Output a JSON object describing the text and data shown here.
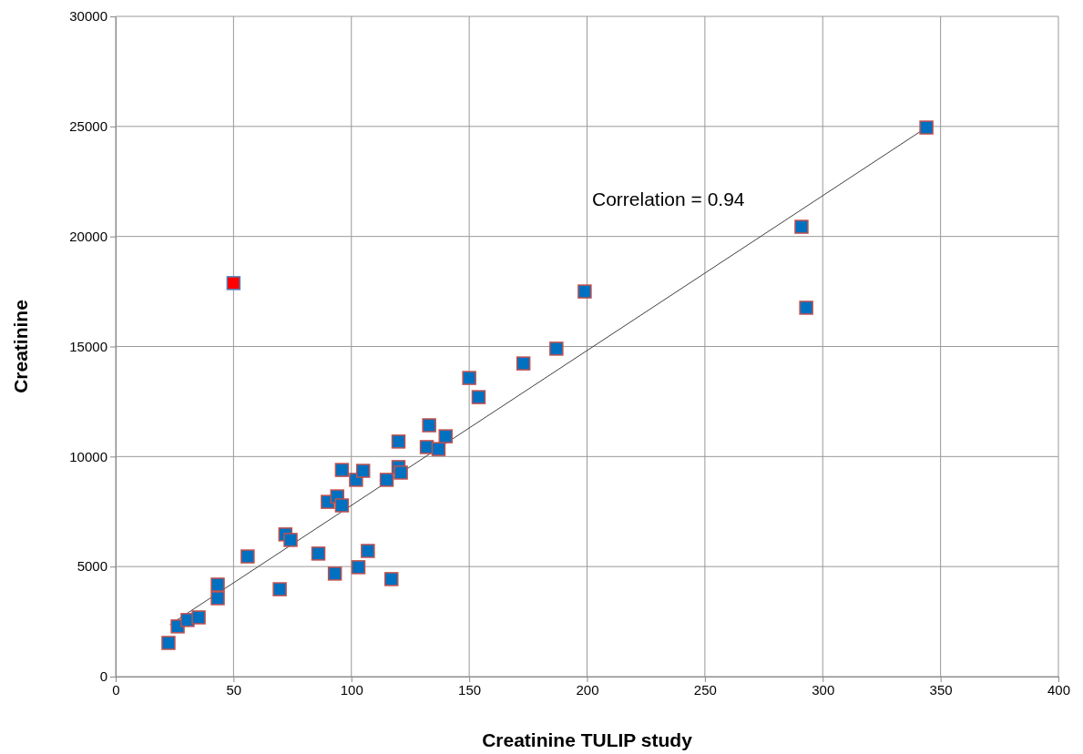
{
  "chart_data": {
    "type": "scatter",
    "xlabel": "Creatinine TULIP study",
    "ylabel": "Creatinine",
    "xlim": [
      0,
      400
    ],
    "ylim": [
      0,
      30000
    ],
    "xticks": [
      0,
      50,
      100,
      150,
      200,
      250,
      300,
      350,
      400
    ],
    "yticks": [
      0,
      5000,
      10000,
      15000,
      20000,
      25000,
      30000
    ],
    "grid": true,
    "marker": "square",
    "annotations": [
      "Correlation = 0.94"
    ],
    "series": [
      {
        "type": "line",
        "color": "#404040",
        "marker": "none",
        "x": [
          23,
          344
        ],
        "values": [
          2360,
          24950
        ]
      },
      {
        "color": "#0070c0",
        "x": [
          22.4,
          26.3,
          30.5,
          35.2,
          43.3,
          43.3,
          56,
          69.6,
          72,
          74.2,
          86,
          93,
          90,
          94,
          96,
          96,
          102,
          105,
          103,
          107,
          117,
          115,
          120,
          121,
          120,
          132,
          133,
          137,
          140,
          150,
          154,
          173,
          187,
          199,
          291,
          293,
          344
        ],
        "values": [
          1530,
          2280,
          2570,
          2690,
          3560,
          4180,
          5460,
          3970,
          6460,
          6210,
          5590,
          4680,
          7940,
          8190,
          7780,
          9390,
          8940,
          9350,
          4970,
          5710,
          4430,
          8940,
          9520,
          9270,
          10680,
          10430,
          11420,
          10340,
          10920,
          13570,
          12700,
          14230,
          14900,
          17500,
          20440,
          16760,
          24950
        ]
      },
      {
        "color": "#ff0000",
        "x": [
          50
        ],
        "values": [
          17880
        ]
      }
    ]
  }
}
